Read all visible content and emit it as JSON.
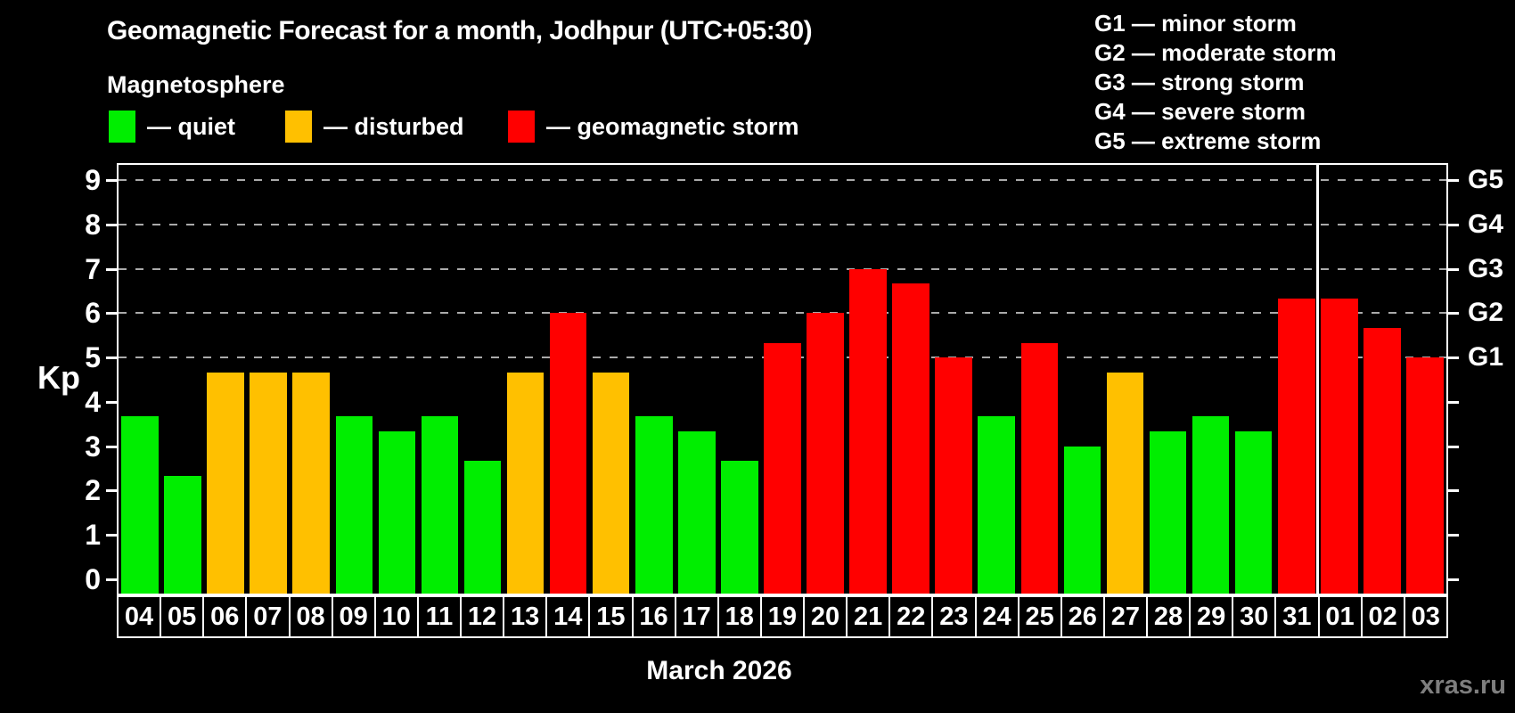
{
  "title": "Geomagnetic Forecast for a month, Jodhpur (UTC+05:30)",
  "subtitle": "Magnetosphere",
  "ylabel": "Kp",
  "watermark": "xras.ru",
  "legend": {
    "quiet": "— quiet",
    "disturbed": "— disturbed",
    "storm": "— geomagnetic storm"
  },
  "g_legend": [
    "G1 — minor storm",
    "G2 — moderate storm",
    "G3 — strong storm",
    "G4 — severe storm",
    "G5 — extreme storm"
  ],
  "colors": {
    "quiet": "#00ee00",
    "disturbed": "#ffc000",
    "storm": "#ff0000",
    "grid": "#aaaaaa",
    "axis": "#ffffff",
    "watermark": "#7e7e7e"
  },
  "chart_data": {
    "type": "bar",
    "title": "Geomagnetic Forecast for a month, Jodhpur (UTC+05:30)",
    "xlabel": "March 2026",
    "ylabel": "Kp",
    "ylim": [
      0,
      9.4
    ],
    "grid": "horizontal dashed at Kp 5-9",
    "legend_position": "top-left",
    "yticks": [
      0,
      1,
      2,
      3,
      4,
      5,
      6,
      7,
      8,
      9
    ],
    "gridlines_at": [
      5,
      6,
      7,
      8,
      9
    ],
    "right_axis": [
      {
        "value": 5,
        "label": "G1"
      },
      {
        "value": 6,
        "label": "G2"
      },
      {
        "value": 7,
        "label": "G3"
      },
      {
        "value": 8,
        "label": "G4"
      },
      {
        "value": 9,
        "label": "G5"
      }
    ],
    "categories": [
      "04",
      "05",
      "06",
      "07",
      "08",
      "09",
      "10",
      "11",
      "12",
      "13",
      "14",
      "15",
      "16",
      "17",
      "18",
      "19",
      "20",
      "21",
      "22",
      "23",
      "24",
      "25",
      "26",
      "27",
      "28",
      "29",
      "30",
      "31",
      "01",
      "02",
      "03"
    ],
    "values": [
      3.67,
      2.33,
      4.67,
      4.67,
      4.67,
      3.67,
      3.33,
      3.67,
      2.67,
      4.67,
      6.0,
      4.67,
      3.67,
      3.33,
      2.67,
      5.33,
      6.0,
      7.0,
      6.67,
      5.0,
      3.67,
      5.33,
      3.0,
      4.67,
      3.33,
      3.67,
      3.33,
      6.33,
      6.33,
      5.67,
      5.0
    ],
    "statuses": [
      "quiet",
      "quiet",
      "disturbed",
      "disturbed",
      "disturbed",
      "quiet",
      "quiet",
      "quiet",
      "quiet",
      "disturbed",
      "storm",
      "disturbed",
      "quiet",
      "quiet",
      "quiet",
      "storm",
      "storm",
      "storm",
      "storm",
      "storm",
      "quiet",
      "storm",
      "quiet",
      "disturbed",
      "quiet",
      "quiet",
      "quiet",
      "storm",
      "storm",
      "storm",
      "storm"
    ],
    "month_divider_after_index": 27
  }
}
